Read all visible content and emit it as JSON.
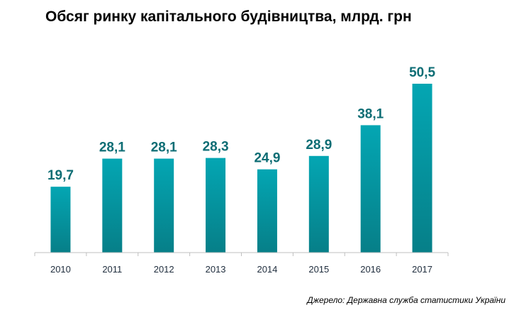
{
  "chart_data": {
    "type": "bar",
    "title": "Обсяг ринку капітального будівництва, млрд. грн",
    "categories": [
      "2010",
      "2011",
      "2012",
      "2013",
      "2014",
      "2015",
      "2016",
      "2017"
    ],
    "values": [
      19.7,
      28.1,
      28.1,
      28.3,
      24.9,
      28.9,
      38.1,
      50.5
    ],
    "value_labels": [
      "19,7",
      "28,1",
      "28,1",
      "28,3",
      "24,9",
      "28,9",
      "38,1",
      "50,5"
    ],
    "xlabel": "",
    "ylabel": "",
    "ylim": [
      0,
      50.5
    ],
    "grid": false,
    "legend": "none"
  },
  "source": "Джерело: Державна служба статистики України",
  "colors": {
    "bar_top": "#04a6b3",
    "bar_bottom": "#067f88",
    "label": "#0d6d74",
    "axis": "#bfbfbf"
  }
}
